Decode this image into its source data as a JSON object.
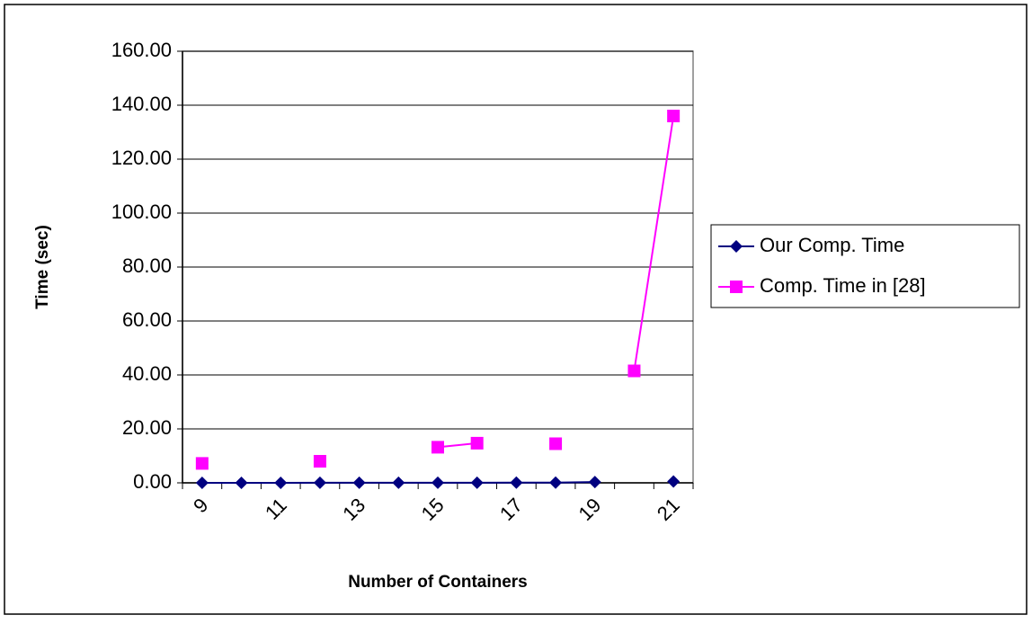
{
  "chart_data": {
    "type": "line",
    "x_label": "Number of Containers",
    "y_label": "Time (sec)",
    "categories": [
      "9",
      null,
      "11",
      null,
      "13",
      null,
      "15",
      null,
      "17",
      null,
      "19",
      null,
      "21"
    ],
    "series": [
      {
        "name": "Our Comp. Time",
        "color": "#000080",
        "marker": "diamond",
        "values": [
          0.02,
          0.02,
          0.02,
          0.03,
          0.03,
          0.04,
          0.05,
          0.06,
          0.07,
          0.1,
          0.3,
          null,
          0.5
        ]
      },
      {
        "name": "Comp. Time in [28]",
        "color": "#ff00ff",
        "marker": "square",
        "values": [
          7.2,
          null,
          null,
          8.0,
          null,
          null,
          13.2,
          14.7,
          null,
          14.5,
          null,
          41.5,
          136.0
        ]
      }
    ],
    "ylim": [
      0,
      160
    ],
    "yticks": [
      {
        "value": 0,
        "label": "0.00"
      },
      {
        "value": 20,
        "label": "20.00"
      },
      {
        "value": 40,
        "label": "40.00"
      },
      {
        "value": 60,
        "label": "60.00"
      },
      {
        "value": 80,
        "label": "80.00"
      },
      {
        "value": 100,
        "label": "100.00"
      },
      {
        "value": 120,
        "label": "120.00"
      },
      {
        "value": 140,
        "label": "140.00"
      },
      {
        "value": 160,
        "label": "160.00"
      }
    ],
    "grid": true,
    "legend": "right"
  }
}
